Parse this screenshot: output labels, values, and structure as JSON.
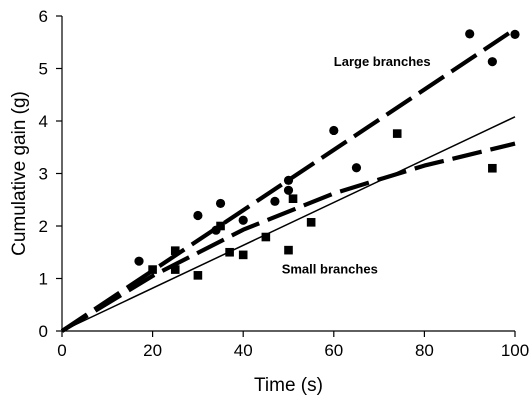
{
  "chart_data": {
    "type": "scatter",
    "xlabel": "Time (s)",
    "ylabel": "Cumulative gain (g)",
    "xlim": [
      0,
      100
    ],
    "ylim": [
      0,
      6
    ],
    "xticks": [
      0,
      20,
      40,
      60,
      80,
      100
    ],
    "yticks": [
      0,
      1,
      2,
      3,
      4,
      5,
      6
    ],
    "grid": false,
    "series": [
      {
        "marker": "circle",
        "points": [
          {
            "x": 17,
            "y": 1.33
          },
          {
            "x": 30,
            "y": 2.2
          },
          {
            "x": 34,
            "y": 1.92
          },
          {
            "x": 35,
            "y": 2.43
          },
          {
            "x": 40,
            "y": 2.11
          },
          {
            "x": 47,
            "y": 2.47
          },
          {
            "x": 50,
            "y": 2.68
          },
          {
            "x": 50,
            "y": 2.87
          },
          {
            "x": 60,
            "y": 3.82
          },
          {
            "x": 65,
            "y": 3.11
          },
          {
            "x": 90,
            "y": 5.66
          },
          {
            "x": 95,
            "y": 5.13
          },
          {
            "x": 100,
            "y": 5.65
          }
        ]
      },
      {
        "marker": "square",
        "points": [
          {
            "x": 20,
            "y": 1.17
          },
          {
            "x": 25,
            "y": 1.53
          },
          {
            "x": 25,
            "y": 1.17
          },
          {
            "x": 30,
            "y": 1.06
          },
          {
            "x": 35,
            "y": 2.0
          },
          {
            "x": 37,
            "y": 1.5
          },
          {
            "x": 40,
            "y": 1.45
          },
          {
            "x": 45,
            "y": 1.79
          },
          {
            "x": 50,
            "y": 1.54
          },
          {
            "x": 51,
            "y": 2.52
          },
          {
            "x": 55,
            "y": 2.07
          },
          {
            "x": 74,
            "y": 3.76
          },
          {
            "x": 95,
            "y": 3.1
          }
        ]
      }
    ],
    "lines": [
      {
        "style": "dashed",
        "weight": "heavy",
        "points": [
          {
            "x": 0,
            "y": 0
          },
          {
            "x": 100,
            "y": 5.75
          }
        ]
      },
      {
        "style": "dashed",
        "weight": "heavy",
        "points": [
          {
            "x": 0,
            "y": 0
          },
          {
            "x": 20,
            "y": 1.05
          },
          {
            "x": 40,
            "y": 1.93
          },
          {
            "x": 60,
            "y": 2.62
          },
          {
            "x": 80,
            "y": 3.15
          },
          {
            "x": 100,
            "y": 3.57
          }
        ]
      },
      {
        "style": "solid",
        "weight": "thin",
        "points": [
          {
            "x": 0,
            "y": 0
          },
          {
            "x": 100,
            "y": 4.08
          }
        ]
      }
    ],
    "annotations": [
      {
        "text": "Large branches",
        "x": 60,
        "y": 5.05
      },
      {
        "text": "Small branches",
        "x": 48.5,
        "y": 1.1
      }
    ]
  }
}
